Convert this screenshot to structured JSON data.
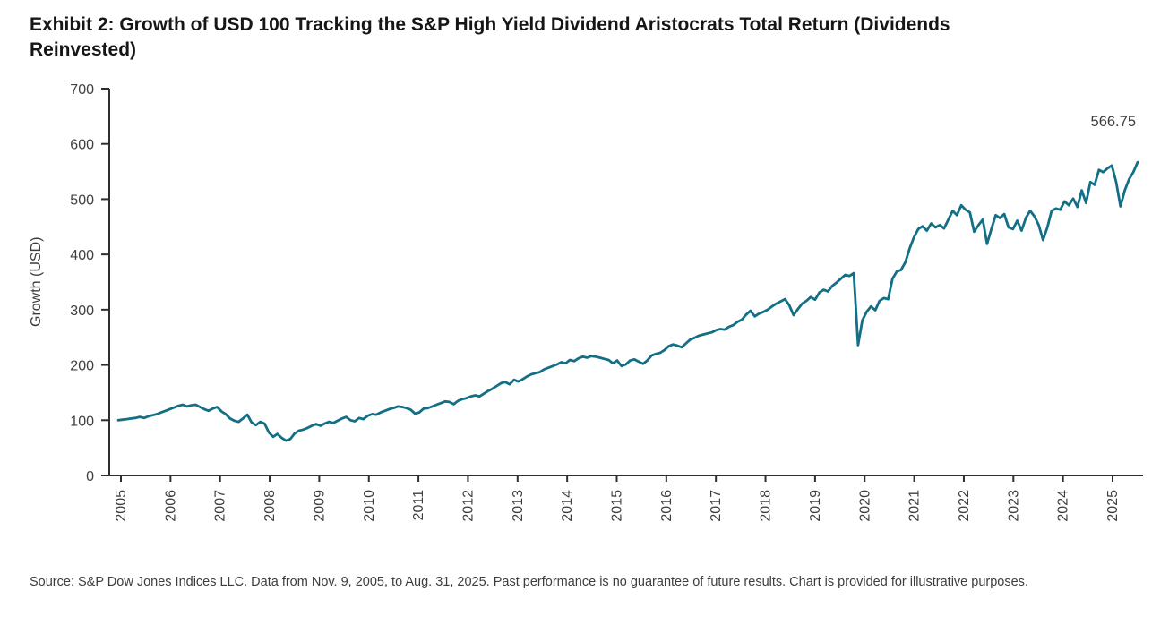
{
  "title": "Exhibit 2: Growth of USD 100 Tracking the S&P High Yield Dividend Aristocrats Total Return (Dividends Reinvested)",
  "source": "Source: S&P Dow Jones Indices LLC. Data from Nov. 9, 2005, to Aug. 31, 2025. Past performance is no guarantee of future results. Chart is provided for illustrative purposes.",
  "chart_data": {
    "type": "line",
    "title": "Growth of USD 100 Tracking the S&P High Yield Dividend Aristocrats Total Return (Dividends Reinvested)",
    "xlabel": "",
    "ylabel": "Growth (USD)",
    "ylim": [
      0,
      700
    ],
    "y_ticks": [
      0,
      100,
      200,
      300,
      400,
      500,
      600,
      700
    ],
    "x_ticks": [
      "2005",
      "2006",
      "2007",
      "2008",
      "2009",
      "2010",
      "2011",
      "2012",
      "2013",
      "2014",
      "2015",
      "2016",
      "2017",
      "2018",
      "2019",
      "2020",
      "2021",
      "2022",
      "2023",
      "2024",
      "2025"
    ],
    "x_start": "Nov 2005",
    "x_end": "Aug 2025",
    "frequency": "monthly (estimated from chart)",
    "grid": false,
    "legend": null,
    "line_color": "#136F85",
    "end_label": "566.75",
    "values": [
      100,
      101,
      102,
      103,
      104,
      106,
      104,
      107,
      109,
      111,
      114,
      117,
      120,
      123,
      126,
      128,
      125,
      127,
      128,
      124,
      120,
      117,
      121,
      124,
      116,
      111,
      103,
      99,
      97,
      103,
      110,
      96,
      91,
      97,
      94,
      78,
      70,
      75,
      68,
      63,
      66,
      76,
      81,
      83,
      86,
      90,
      93,
      90,
      94,
      97,
      95,
      99,
      103,
      106,
      100,
      98,
      104,
      102,
      108,
      111,
      110,
      114,
      117,
      120,
      122,
      125,
      124,
      122,
      119,
      112,
      114,
      121,
      122,
      125,
      128,
      131,
      134,
      133,
      129,
      135,
      138,
      140,
      143,
      145,
      143,
      148,
      153,
      157,
      162,
      167,
      169,
      165,
      173,
      170,
      174,
      179,
      183,
      185,
      187,
      192,
      195,
      198,
      201,
      205,
      203,
      209,
      207,
      212,
      215,
      213,
      216,
      215,
      213,
      211,
      209,
      203,
      208,
      198,
      201,
      208,
      210,
      206,
      202,
      208,
      217,
      220,
      222,
      227,
      234,
      237,
      235,
      232,
      239,
      246,
      249,
      253,
      255,
      257,
      259,
      263,
      265,
      264,
      269,
      272,
      278,
      282,
      291,
      298,
      288,
      293,
      296,
      300,
      306,
      311,
      315,
      319,
      308,
      290,
      301,
      311,
      316,
      323,
      318,
      331,
      336,
      333,
      343,
      349,
      356,
      363,
      361,
      366,
      236,
      281,
      296,
      306,
      299,
      316,
      321,
      319,
      356,
      369,
      372,
      386,
      411,
      431,
      446,
      451,
      443,
      456,
      449,
      453,
      447,
      463,
      479,
      471,
      489,
      481,
      476,
      441,
      453,
      463,
      419,
      446,
      471,
      466,
      473,
      449,
      446,
      461,
      443,
      466,
      479,
      469,
      453,
      426,
      449,
      479,
      483,
      481,
      496,
      489,
      501,
      486,
      516,
      493,
      531,
      526,
      553,
      549,
      556,
      561,
      531,
      487,
      516,
      536,
      549,
      566.75
    ]
  }
}
